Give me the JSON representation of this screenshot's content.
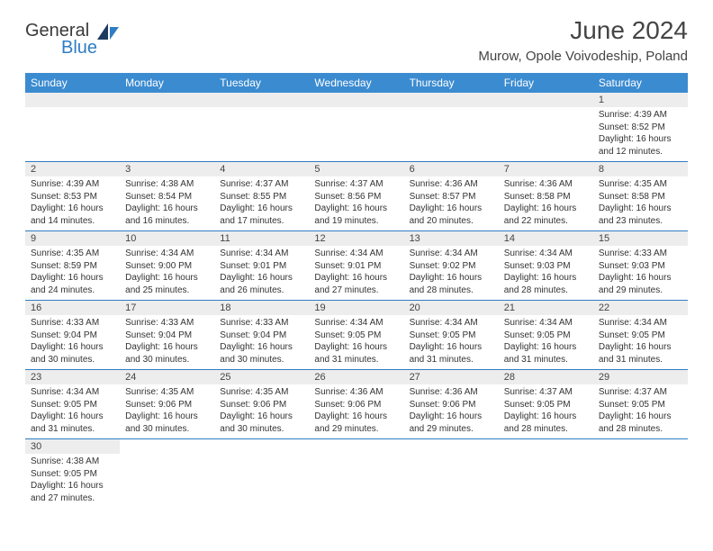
{
  "logo": {
    "text1": "General",
    "text2": "Blue"
  },
  "title": "June 2024",
  "location": "Murow, Opole Voivodeship, Poland",
  "colors": {
    "header_bg": "#3b8bd0",
    "header_text": "#ffffff",
    "daynum_bg": "#ededed",
    "border": "#2f7dc4",
    "logo_gray": "#3a3a3a",
    "logo_blue": "#2f7dc4"
  },
  "weekdays": [
    "Sunday",
    "Monday",
    "Tuesday",
    "Wednesday",
    "Thursday",
    "Friday",
    "Saturday"
  ],
  "weeks": [
    [
      null,
      null,
      null,
      null,
      null,
      null,
      {
        "n": "1",
        "sr": "Sunrise: 4:39 AM",
        "ss": "Sunset: 8:52 PM",
        "d1": "Daylight: 16 hours",
        "d2": "and 12 minutes."
      }
    ],
    [
      {
        "n": "2",
        "sr": "Sunrise: 4:39 AM",
        "ss": "Sunset: 8:53 PM",
        "d1": "Daylight: 16 hours",
        "d2": "and 14 minutes."
      },
      {
        "n": "3",
        "sr": "Sunrise: 4:38 AM",
        "ss": "Sunset: 8:54 PM",
        "d1": "Daylight: 16 hours",
        "d2": "and 16 minutes."
      },
      {
        "n": "4",
        "sr": "Sunrise: 4:37 AM",
        "ss": "Sunset: 8:55 PM",
        "d1": "Daylight: 16 hours",
        "d2": "and 17 minutes."
      },
      {
        "n": "5",
        "sr": "Sunrise: 4:37 AM",
        "ss": "Sunset: 8:56 PM",
        "d1": "Daylight: 16 hours",
        "d2": "and 19 minutes."
      },
      {
        "n": "6",
        "sr": "Sunrise: 4:36 AM",
        "ss": "Sunset: 8:57 PM",
        "d1": "Daylight: 16 hours",
        "d2": "and 20 minutes."
      },
      {
        "n": "7",
        "sr": "Sunrise: 4:36 AM",
        "ss": "Sunset: 8:58 PM",
        "d1": "Daylight: 16 hours",
        "d2": "and 22 minutes."
      },
      {
        "n": "8",
        "sr": "Sunrise: 4:35 AM",
        "ss": "Sunset: 8:58 PM",
        "d1": "Daylight: 16 hours",
        "d2": "and 23 minutes."
      }
    ],
    [
      {
        "n": "9",
        "sr": "Sunrise: 4:35 AM",
        "ss": "Sunset: 8:59 PM",
        "d1": "Daylight: 16 hours",
        "d2": "and 24 minutes."
      },
      {
        "n": "10",
        "sr": "Sunrise: 4:34 AM",
        "ss": "Sunset: 9:00 PM",
        "d1": "Daylight: 16 hours",
        "d2": "and 25 minutes."
      },
      {
        "n": "11",
        "sr": "Sunrise: 4:34 AM",
        "ss": "Sunset: 9:01 PM",
        "d1": "Daylight: 16 hours",
        "d2": "and 26 minutes."
      },
      {
        "n": "12",
        "sr": "Sunrise: 4:34 AM",
        "ss": "Sunset: 9:01 PM",
        "d1": "Daylight: 16 hours",
        "d2": "and 27 minutes."
      },
      {
        "n": "13",
        "sr": "Sunrise: 4:34 AM",
        "ss": "Sunset: 9:02 PM",
        "d1": "Daylight: 16 hours",
        "d2": "and 28 minutes."
      },
      {
        "n": "14",
        "sr": "Sunrise: 4:34 AM",
        "ss": "Sunset: 9:03 PM",
        "d1": "Daylight: 16 hours",
        "d2": "and 28 minutes."
      },
      {
        "n": "15",
        "sr": "Sunrise: 4:33 AM",
        "ss": "Sunset: 9:03 PM",
        "d1": "Daylight: 16 hours",
        "d2": "and 29 minutes."
      }
    ],
    [
      {
        "n": "16",
        "sr": "Sunrise: 4:33 AM",
        "ss": "Sunset: 9:04 PM",
        "d1": "Daylight: 16 hours",
        "d2": "and 30 minutes."
      },
      {
        "n": "17",
        "sr": "Sunrise: 4:33 AM",
        "ss": "Sunset: 9:04 PM",
        "d1": "Daylight: 16 hours",
        "d2": "and 30 minutes."
      },
      {
        "n": "18",
        "sr": "Sunrise: 4:33 AM",
        "ss": "Sunset: 9:04 PM",
        "d1": "Daylight: 16 hours",
        "d2": "and 30 minutes."
      },
      {
        "n": "19",
        "sr": "Sunrise: 4:34 AM",
        "ss": "Sunset: 9:05 PM",
        "d1": "Daylight: 16 hours",
        "d2": "and 31 minutes."
      },
      {
        "n": "20",
        "sr": "Sunrise: 4:34 AM",
        "ss": "Sunset: 9:05 PM",
        "d1": "Daylight: 16 hours",
        "d2": "and 31 minutes."
      },
      {
        "n": "21",
        "sr": "Sunrise: 4:34 AM",
        "ss": "Sunset: 9:05 PM",
        "d1": "Daylight: 16 hours",
        "d2": "and 31 minutes."
      },
      {
        "n": "22",
        "sr": "Sunrise: 4:34 AM",
        "ss": "Sunset: 9:05 PM",
        "d1": "Daylight: 16 hours",
        "d2": "and 31 minutes."
      }
    ],
    [
      {
        "n": "23",
        "sr": "Sunrise: 4:34 AM",
        "ss": "Sunset: 9:05 PM",
        "d1": "Daylight: 16 hours",
        "d2": "and 31 minutes."
      },
      {
        "n": "24",
        "sr": "Sunrise: 4:35 AM",
        "ss": "Sunset: 9:06 PM",
        "d1": "Daylight: 16 hours",
        "d2": "and 30 minutes."
      },
      {
        "n": "25",
        "sr": "Sunrise: 4:35 AM",
        "ss": "Sunset: 9:06 PM",
        "d1": "Daylight: 16 hours",
        "d2": "and 30 minutes."
      },
      {
        "n": "26",
        "sr": "Sunrise: 4:36 AM",
        "ss": "Sunset: 9:06 PM",
        "d1": "Daylight: 16 hours",
        "d2": "and 29 minutes."
      },
      {
        "n": "27",
        "sr": "Sunrise: 4:36 AM",
        "ss": "Sunset: 9:06 PM",
        "d1": "Daylight: 16 hours",
        "d2": "and 29 minutes."
      },
      {
        "n": "28",
        "sr": "Sunrise: 4:37 AM",
        "ss": "Sunset: 9:05 PM",
        "d1": "Daylight: 16 hours",
        "d2": "and 28 minutes."
      },
      {
        "n": "29",
        "sr": "Sunrise: 4:37 AM",
        "ss": "Sunset: 9:05 PM",
        "d1": "Daylight: 16 hours",
        "d2": "and 28 minutes."
      }
    ],
    [
      {
        "n": "30",
        "sr": "Sunrise: 4:38 AM",
        "ss": "Sunset: 9:05 PM",
        "d1": "Daylight: 16 hours",
        "d2": "and 27 minutes."
      },
      null,
      null,
      null,
      null,
      null,
      null
    ]
  ]
}
